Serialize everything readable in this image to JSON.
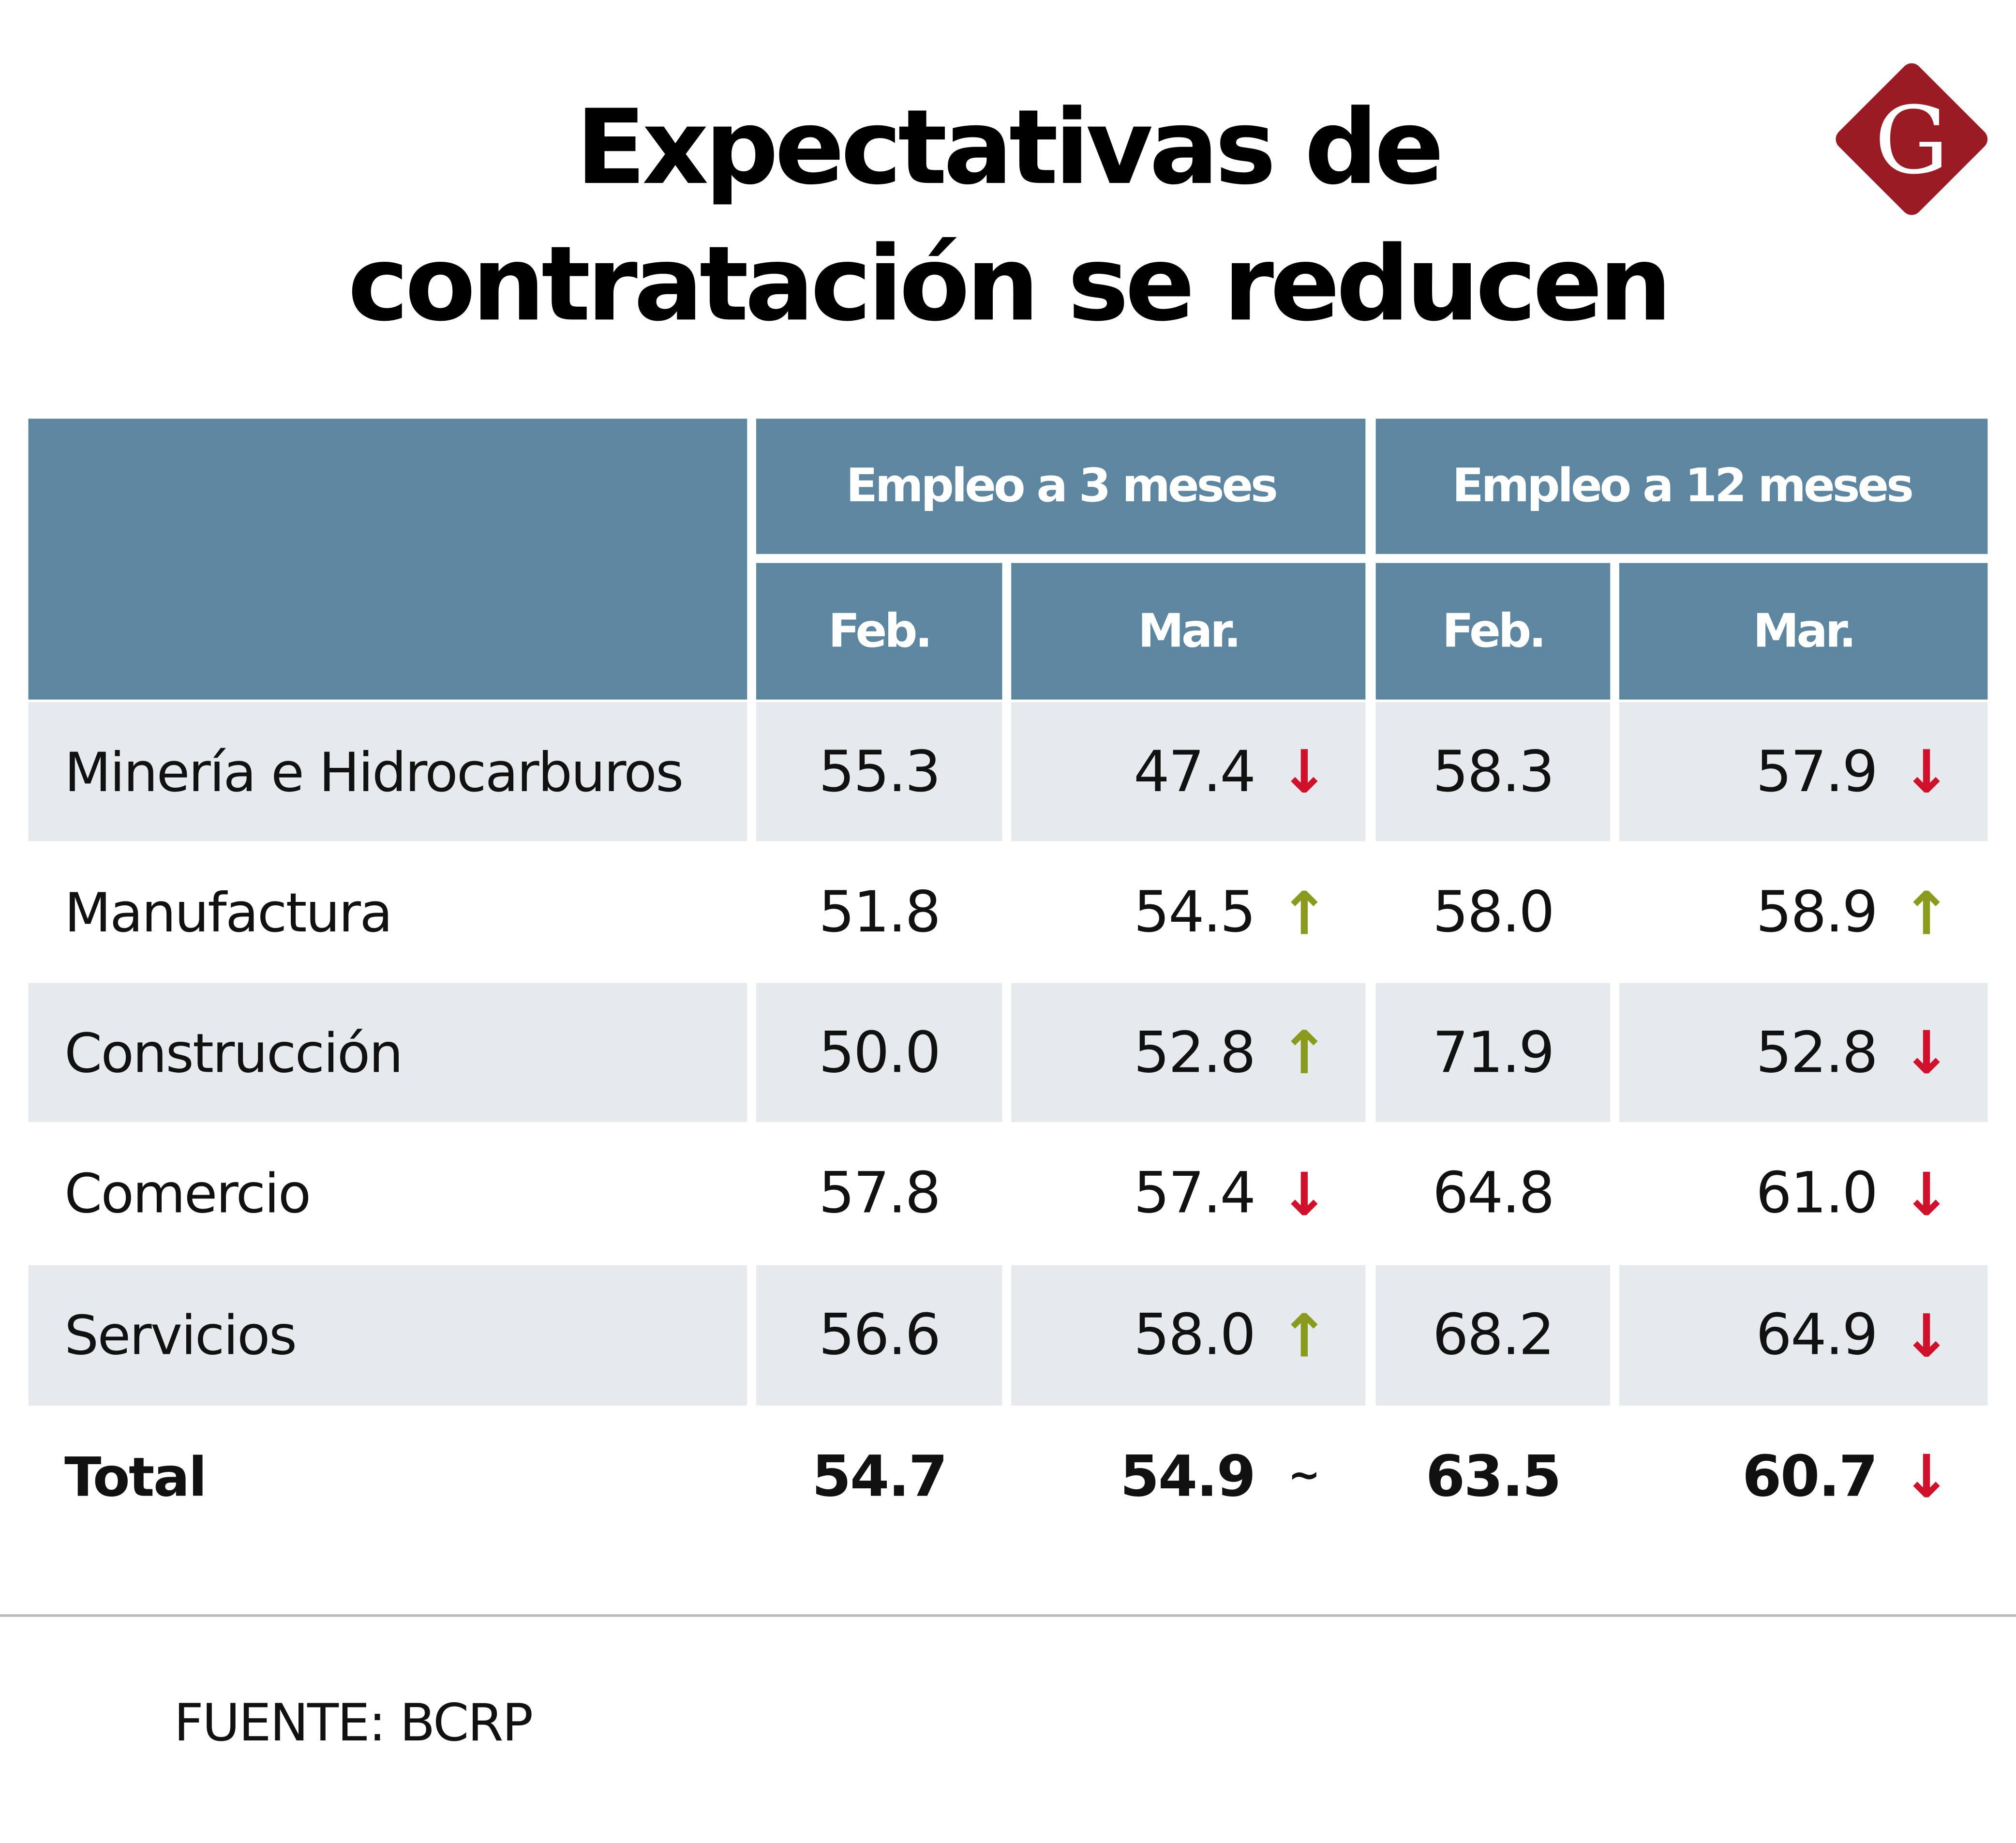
{
  "title": "Expectativas de contratación se reducen",
  "logo": {
    "text": "G",
    "color": "#9b1b24"
  },
  "colors": {
    "header": "#5d87a0",
    "row_alt": "#e7eaed",
    "down": "#d0112b",
    "up": "#8a9a1f"
  },
  "table": {
    "groups": [
      "Empleo a 3 meses",
      "Empleo a 12 meses"
    ],
    "months": [
      "Feb.",
      "Mar.",
      "Feb.",
      "Mar."
    ],
    "rows": [
      {
        "label": "Minería e Hidrocarburos",
        "values": [
          "55.3",
          "47.4",
          "58.3",
          "57.9"
        ],
        "trend3": "down",
        "trend12": "down"
      },
      {
        "label": "Manufactura",
        "values": [
          "51.8",
          "54.5",
          "58.0",
          "58.9"
        ],
        "trend3": "up",
        "trend12": "up"
      },
      {
        "label": "Construcción",
        "values": [
          "50.0",
          "52.8",
          "71.9",
          "52.8"
        ],
        "trend3": "up",
        "trend12": "down"
      },
      {
        "label": "Comercio",
        "values": [
          "57.8",
          "57.4",
          "64.8",
          "61.0"
        ],
        "trend3": "down",
        "trend12": "down"
      },
      {
        "label": "Servicios",
        "values": [
          "56.6",
          "58.0",
          "68.2",
          "64.9"
        ],
        "trend3": "up",
        "trend12": "down"
      },
      {
        "label": "Total",
        "values": [
          "54.7",
          "54.9",
          "63.5",
          "60.7"
        ],
        "trend3": "flat",
        "trend12": "down"
      }
    ]
  },
  "symbols": {
    "up": "🡅",
    "down": "🡇",
    "flat": "~"
  },
  "source": "FUENTE: BCRP"
}
